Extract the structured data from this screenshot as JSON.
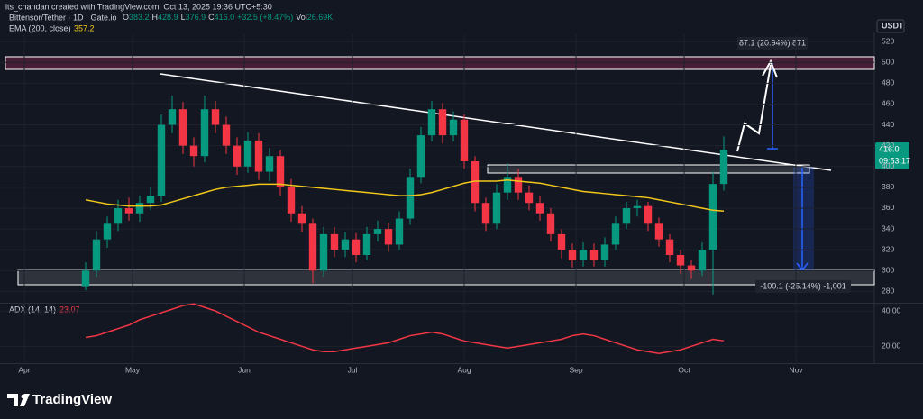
{
  "header": {
    "credit": "its_chandan created with TradingView.com, Oct 13, 2025 19:36 UTC+5:30",
    "readout": [
      "O",
      "383.2",
      "H",
      "428.9",
      "L",
      "376.9",
      "C",
      "416.0",
      "+32.5 (+8.47%)",
      "Vol",
      "26.69K"
    ],
    "currency": "USDT",
    "last_price": "416.0",
    "countdown": "09:53:17",
    "logo": "TradingView"
  },
  "annotations": [
    "87.1 (20.94%) 871",
    "-100.1 (-25.14%) -1,001"
  ],
  "chart_data": {
    "type": "candlestick",
    "title": "Bittensor/Tether · 1D · Gate.io",
    "color_up": "#089981",
    "color_down": "#f23645",
    "x": [
      17,
      20,
      23,
      26,
      29,
      32,
      35,
      38,
      41,
      44,
      47,
      50,
      53,
      56,
      59,
      62,
      65,
      68,
      71,
      74,
      77,
      80,
      83,
      86,
      89,
      92,
      95,
      98,
      101,
      104,
      107,
      110,
      113,
      116,
      119,
      122,
      125,
      128,
      131,
      134,
      137,
      140,
      143,
      146,
      149,
      152,
      155,
      158,
      161,
      164,
      167,
      170,
      173,
      176,
      179,
      182,
      185,
      188,
      191,
      194
    ],
    "open": [
      285,
      300,
      330,
      345,
      360,
      355,
      365,
      372,
      440,
      455,
      420,
      410,
      455,
      440,
      420,
      400,
      425,
      395,
      410,
      380,
      355,
      345,
      300,
      335,
      320,
      330,
      315,
      335,
      340,
      325,
      350,
      390,
      430,
      455,
      430,
      445,
      405,
      365,
      345,
      375,
      390,
      375,
      365,
      355,
      335,
      320,
      310,
      320,
      310,
      325,
      345,
      360,
      362,
      345,
      330,
      315,
      305,
      300,
      320,
      383.2
    ],
    "high": [
      308,
      338,
      352,
      368,
      370,
      372,
      380,
      450,
      468,
      462,
      428,
      468,
      463,
      448,
      428,
      433,
      432,
      418,
      416,
      388,
      362,
      350,
      342,
      342,
      337,
      336,
      342,
      348,
      346,
      357,
      398,
      438,
      463,
      461,
      453,
      450,
      410,
      370,
      383,
      403,
      398,
      382,
      372,
      360,
      340,
      326,
      327,
      326,
      332,
      352,
      366,
      368,
      366,
      351,
      335,
      320,
      310,
      327,
      395,
      428.9
    ],
    "low": [
      281,
      294,
      322,
      338,
      348,
      347,
      358,
      366,
      432,
      412,
      400,
      404,
      432,
      412,
      392,
      394,
      387,
      386,
      372,
      347,
      337,
      288,
      294,
      313,
      313,
      308,
      310,
      328,
      318,
      320,
      344,
      384,
      424,
      422,
      424,
      398,
      357,
      338,
      340,
      368,
      368,
      358,
      348,
      328,
      312,
      303,
      304,
      304,
      304,
      320,
      340,
      352,
      338,
      323,
      308,
      297,
      292,
      295,
      277,
      376.9
    ],
    "close": [
      300,
      330,
      345,
      360,
      355,
      365,
      372,
      440,
      455,
      420,
      410,
      455,
      440,
      420,
      400,
      425,
      395,
      410,
      380,
      355,
      345,
      300,
      335,
      320,
      330,
      315,
      335,
      340,
      325,
      350,
      390,
      430,
      455,
      430,
      445,
      405,
      365,
      345,
      375,
      390,
      375,
      365,
      355,
      335,
      320,
      310,
      320,
      310,
      325,
      345,
      360,
      362,
      345,
      330,
      315,
      305,
      300,
      320,
      383.2,
      416
    ],
    "xlim": [
      -6.75,
      235.75
    ],
    "xticks": [
      {
        "value": 0,
        "label": "Apr"
      },
      {
        "value": 30,
        "label": "May"
      },
      {
        "value": 61,
        "label": "Jun"
      },
      {
        "value": 91,
        "label": "Jul"
      },
      {
        "value": 122,
        "label": "Aug"
      },
      {
        "value": 153,
        "label": "Sep"
      },
      {
        "value": 183,
        "label": "Oct"
      },
      {
        "value": 214,
        "label": "Nov"
      }
    ],
    "ylim": [
      270,
      527
    ],
    "yticks": [
      280,
      300,
      320,
      340,
      360,
      380,
      400,
      420,
      440,
      460,
      480,
      500,
      520
    ],
    "ema": {
      "name": "EMA (200, close)",
      "color": "#f2c71a",
      "values": [
        368,
        366,
        364,
        363,
        362,
        362,
        362,
        363,
        366,
        369,
        372,
        375,
        378,
        380,
        381,
        382,
        383,
        383,
        383,
        382,
        381,
        380,
        379,
        378,
        377,
        376,
        375,
        374,
        373,
        372,
        372,
        373,
        375,
        378,
        381,
        384,
        386,
        386,
        386,
        387,
        386,
        385,
        384,
        382,
        380,
        378,
        376,
        375,
        374,
        373,
        372,
        371,
        370,
        368,
        366,
        364,
        362,
        360,
        358,
        357.2
      ]
    },
    "adx": {
      "name": "ADX (14, 14)",
      "color": "#f23645",
      "ylim": [
        11,
        43.6
      ],
      "yticks": [
        {
          "value": 20,
          "label": "20.00"
        },
        {
          "value": 40,
          "label": "40.00"
        }
      ],
      "values": [
        25,
        26,
        28,
        30,
        32,
        35,
        37,
        39,
        41,
        43,
        44,
        42,
        40,
        37,
        34,
        31,
        28,
        26,
        24,
        22,
        20,
        18,
        17,
        17,
        18,
        19,
        20,
        21,
        22,
        24,
        26,
        27,
        28,
        27,
        25,
        23,
        22,
        21,
        20,
        19,
        20,
        21,
        22,
        23,
        24,
        26,
        27,
        26,
        24,
        22,
        20,
        18,
        17,
        16,
        17,
        18,
        20,
        22,
        24,
        23.07
      ]
    }
  }
}
